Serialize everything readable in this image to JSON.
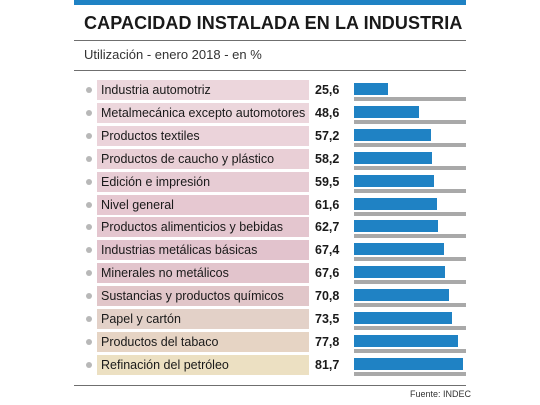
{
  "header": {
    "title": "CAPACIDAD INSTALADA EN LA INDUSTRIA",
    "subtitle": "Utilización - enero 2018 - en %"
  },
  "footer": {
    "source": "Fuente: INDEC"
  },
  "colors": {
    "bar": "#1f82c4",
    "track": "#a9a9a9",
    "label_backgrounds": [
      "#ecd6dc",
      "#ecd6dc",
      "#ebd3da",
      "#e9cfd6",
      "#e7ccd4",
      "#e6c8d1",
      "#e4c6cf",
      "#e2c3cd",
      "#e2c4cc",
      "#e1c6c9",
      "#e3d1c8",
      "#e6d4c4",
      "#ece0c2"
    ]
  },
  "chart_data": {
    "type": "bar",
    "orientation": "horizontal",
    "title": "CAPACIDAD INSTALADA EN LA INDUSTRIA",
    "subtitle": "Utilización - enero 2018 - en %",
    "xlim": [
      0,
      100
    ],
    "categories": [
      "Industria automotriz",
      "Metalmecánica excepto automotores",
      "Productos textiles",
      "Productos de caucho y plástico",
      "Edición e impresión",
      "Nivel general",
      "Productos alimenticios y bebidas",
      "Industrias metálicas básicas",
      "Minerales no metálicos",
      "Sustancias y productos químicos",
      "Papel y cartón",
      "Productos del tabaco",
      "Refinación del petróleo"
    ],
    "values": [
      25.6,
      48.6,
      57.2,
      58.2,
      59.5,
      61.6,
      62.7,
      67.4,
      67.6,
      70.8,
      73.5,
      77.8,
      81.7
    ],
    "value_labels": [
      "25,6",
      "48,6",
      "57,2",
      "58,2",
      "59,5",
      "61,6",
      "62,7",
      "67,4",
      "67,6",
      "70,8",
      "73,5",
      "77,8",
      "81,7"
    ],
    "source": "Fuente: INDEC"
  }
}
